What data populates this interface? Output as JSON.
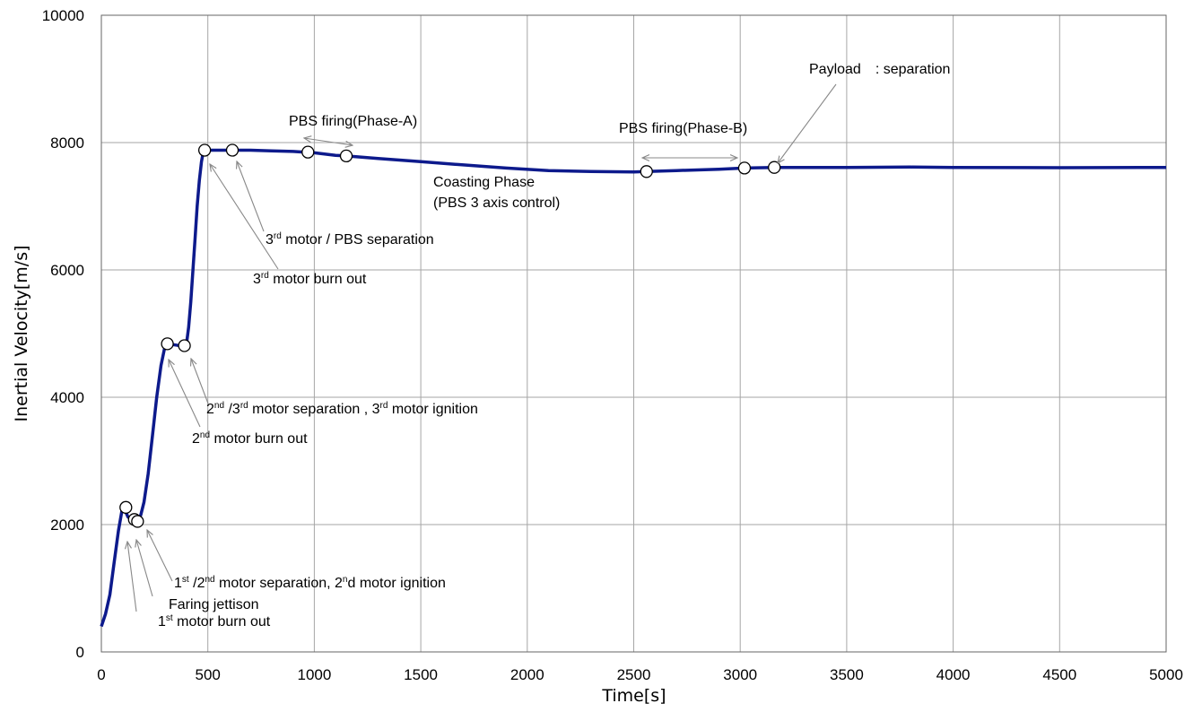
{
  "chart_data": {
    "type": "line",
    "title": "",
    "xlabel": "Time[s]",
    "ylabel": "Inertial Velocity[m/s]",
    "xlim": [
      0,
      5000
    ],
    "ylim": [
      0,
      10000
    ],
    "xticks": [
      "0",
      "500",
      "1000",
      "1500",
      "2000",
      "2500",
      "3000",
      "3500",
      "4000",
      "4500",
      "5000"
    ],
    "yticks": [
      "0",
      "2000",
      "4000",
      "6000",
      "8000",
      "10000"
    ],
    "grid": true,
    "line_color": "#0d1a8c",
    "series": [
      {
        "x": [
          0,
          20,
          40,
          60,
          80,
          100,
          110,
          125,
          140,
          155,
          170,
          185,
          200,
          220,
          240,
          260,
          280,
          300,
          310,
          330,
          350,
          370,
          390,
          400,
          410,
          420,
          430,
          440,
          450,
          460,
          470,
          480,
          500,
          600,
          700,
          800,
          900,
          1000,
          1100,
          1150,
          1300,
          1500,
          1700,
          1900,
          2100,
          2300,
          2500,
          2560,
          2700,
          2900,
          3020,
          3160,
          3500,
          3800,
          4000,
          4500,
          5000
        ],
        "y": [
          400,
          600,
          900,
          1400,
          1900,
          2280,
          2230,
          2120,
          2080,
          2050,
          2060,
          2150,
          2350,
          2800,
          3400,
          4000,
          4500,
          4820,
          4850,
          4830,
          4820,
          4810,
          4800,
          4850,
          5100,
          5500,
          6000,
          6500,
          7000,
          7400,
          7700,
          7880,
          7880,
          7880,
          7880,
          7870,
          7860,
          7840,
          7800,
          7790,
          7750,
          7700,
          7650,
          7600,
          7560,
          7545,
          7540,
          7545,
          7560,
          7580,
          7600,
          7610,
          7610,
          7615,
          7610,
          7605,
          7610
        ]
      }
    ],
    "markers": [
      {
        "x": 115,
        "y": 2270
      },
      {
        "x": 155,
        "y": 2080
      },
      {
        "x": 170,
        "y": 2050
      },
      {
        "x": 310,
        "y": 4840
      },
      {
        "x": 390,
        "y": 4810
      },
      {
        "x": 485,
        "y": 7880
      },
      {
        "x": 615,
        "y": 7880
      },
      {
        "x": 970,
        "y": 7850
      },
      {
        "x": 1150,
        "y": 7790
      },
      {
        "x": 2560,
        "y": 7545
      },
      {
        "x": 3020,
        "y": 7600
      },
      {
        "x": 3160,
        "y": 7610
      }
    ],
    "annotations": {
      "a1_pre": "1",
      "a1_sup": "st",
      "a1_post": " motor burn out",
      "a2": "Faring jettison",
      "a3_pre": "1",
      "a3_sup1": "st",
      "a3_mid": " /2",
      "a3_sup2": "nd",
      "a3_mid2": " motor separation, 2",
      "a3_sup3": "n",
      "a3_post": "d motor ignition",
      "a4_pre": "2",
      "a4_sup": "nd",
      "a4_post": " motor burn out",
      "a5_pre": "2",
      "a5_sup1": "nd",
      "a5_mid": " /3",
      "a5_sup2": "rd",
      "a5_mid2": " motor separation , 3",
      "a5_sup3": "rd",
      "a5_post": " motor ignition",
      "a6_pre": "3",
      "a6_sup": "rd",
      "a6_post": " motor burn out",
      "a7_pre": "3",
      "a7_sup": "rd",
      "a7_post": " motor / PBS separation",
      "a8": "PBS firing(Phase-A)",
      "a9": "Coasting Phase",
      "a10": "(PBS 3 axis control)",
      "a11": "PBS firing(Phase-B)",
      "a12": "Payload　: separation"
    }
  }
}
